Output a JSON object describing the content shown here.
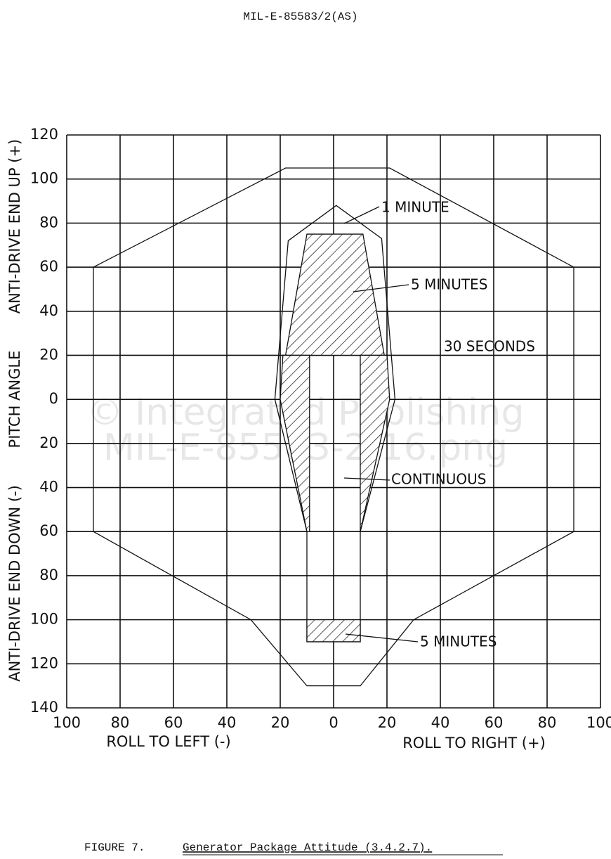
{
  "header": "MIL-E-85583/2(AS)",
  "caption": {
    "number": "FIGURE 7.",
    "title": "Generator Package Attitude (3.4.2.7)."
  },
  "watermark": [
    "© Integrated Publishing",
    "MIL-E-85583-2-16.png"
  ],
  "chart_data": {
    "type": "region",
    "y_label": [
      "ANTI-DRIVE END UP (+)",
      "PITCH ANGLE",
      "ANTI-DRIVE END DOWN (-)"
    ],
    "x_label": [
      "ROLL TO LEFT (-)",
      "ROLL TO RIGHT (+)"
    ],
    "xlim": [
      -100,
      100
    ],
    "ylim": [
      -140,
      120
    ],
    "xticks": [
      {
        "value": -100,
        "label": "100"
      },
      {
        "value": -80,
        "label": "80"
      },
      {
        "value": -60,
        "label": "60"
      },
      {
        "value": -40,
        "label": "40"
      },
      {
        "value": -20,
        "label": "20"
      },
      0,
      20,
      40,
      60,
      80,
      100
    ],
    "yticks": [
      {
        "value": -140,
        "label": "140"
      },
      {
        "value": -120,
        "label": "120"
      },
      {
        "value": -100,
        "label": "100"
      },
      {
        "value": -80,
        "label": "80"
      },
      {
        "value": -60,
        "label": "60"
      },
      {
        "value": -40,
        "label": "40"
      },
      {
        "value": -20,
        "label": "20"
      },
      0,
      20,
      40,
      60,
      80,
      100,
      120
    ],
    "grid": true,
    "regions": [
      {
        "name": "30 SECONDS",
        "hatched": false,
        "parts": [
          {
            "x": [
              -90,
              -18,
              21,
              90,
              90,
              30,
              10,
              -10,
              -31,
              -90
            ],
            "y": [
              60,
              105,
              105,
              60,
              -60,
              -100,
              -130,
              -130,
              -100,
              -60
            ]
          }
        ]
      },
      {
        "name": "1 MINUTE",
        "hatched": false,
        "parts": [
          {
            "x": [
              -17,
              1,
              18,
              23,
              10,
              10,
              -10,
              -10,
              -22
            ],
            "y": [
              72,
              88,
              73,
              0,
              -60,
              -110,
              -110,
              -60,
              0
            ]
          }
        ]
      },
      {
        "name": "5 MINUTES",
        "hatched": true,
        "parts": [
          {
            "x": [
              -10,
              11,
              19,
              -18
            ],
            "y": [
              75,
              75,
              20,
              20
            ]
          }
        ]
      },
      {
        "name": "CONTINUOUS",
        "hatched": true,
        "parts": [
          {
            "x": [
              -19,
              -9,
              -9,
              -10,
              -20
            ],
            "y": [
              20,
              20,
              -60,
              -60,
              0
            ]
          },
          {
            "x": [
              10,
              20,
              21,
              10
            ],
            "y": [
              20,
              20,
              0,
              -60
            ]
          }
        ]
      },
      {
        "name": "5 MINUTES",
        "hatched": true,
        "parts": [
          {
            "x": [
              -10,
              10,
              10,
              -10
            ],
            "y": [
              -100,
              -100,
              -110,
              -110
            ]
          }
        ]
      }
    ]
  }
}
